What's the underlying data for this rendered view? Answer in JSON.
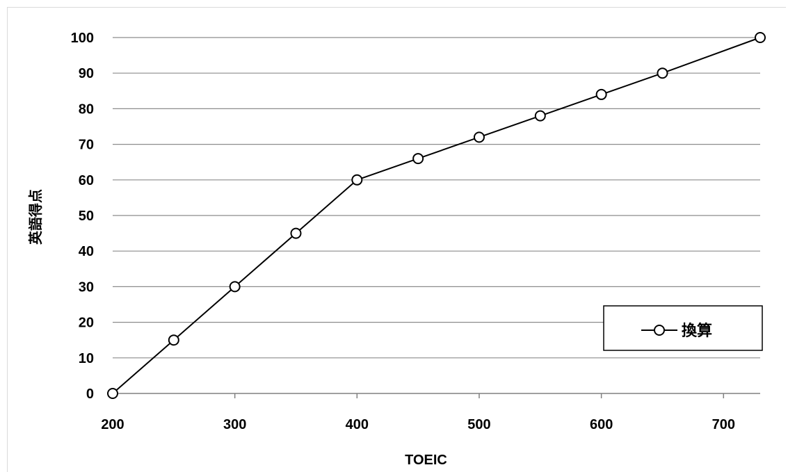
{
  "chart_data": {
    "type": "line",
    "title": "",
    "xlabel": "TOEIC",
    "ylabel": "英語得点",
    "xlim": [
      200,
      730
    ],
    "ylim": [
      0,
      100
    ],
    "x_ticks": [
      200,
      300,
      400,
      500,
      600,
      700
    ],
    "y_ticks": [
      0,
      10,
      20,
      30,
      40,
      50,
      60,
      70,
      80,
      90,
      100
    ],
    "grid": "horizontal",
    "legend_position": "bottom-right",
    "series": [
      {
        "name": "換算",
        "color": "#000000",
        "marker": "open-circle",
        "x": [
          200,
          250,
          300,
          350,
          400,
          450,
          500,
          550,
          600,
          650,
          730
        ],
        "y": [
          0,
          15,
          30,
          45,
          60,
          66,
          72,
          78,
          84,
          90,
          100
        ]
      }
    ]
  }
}
